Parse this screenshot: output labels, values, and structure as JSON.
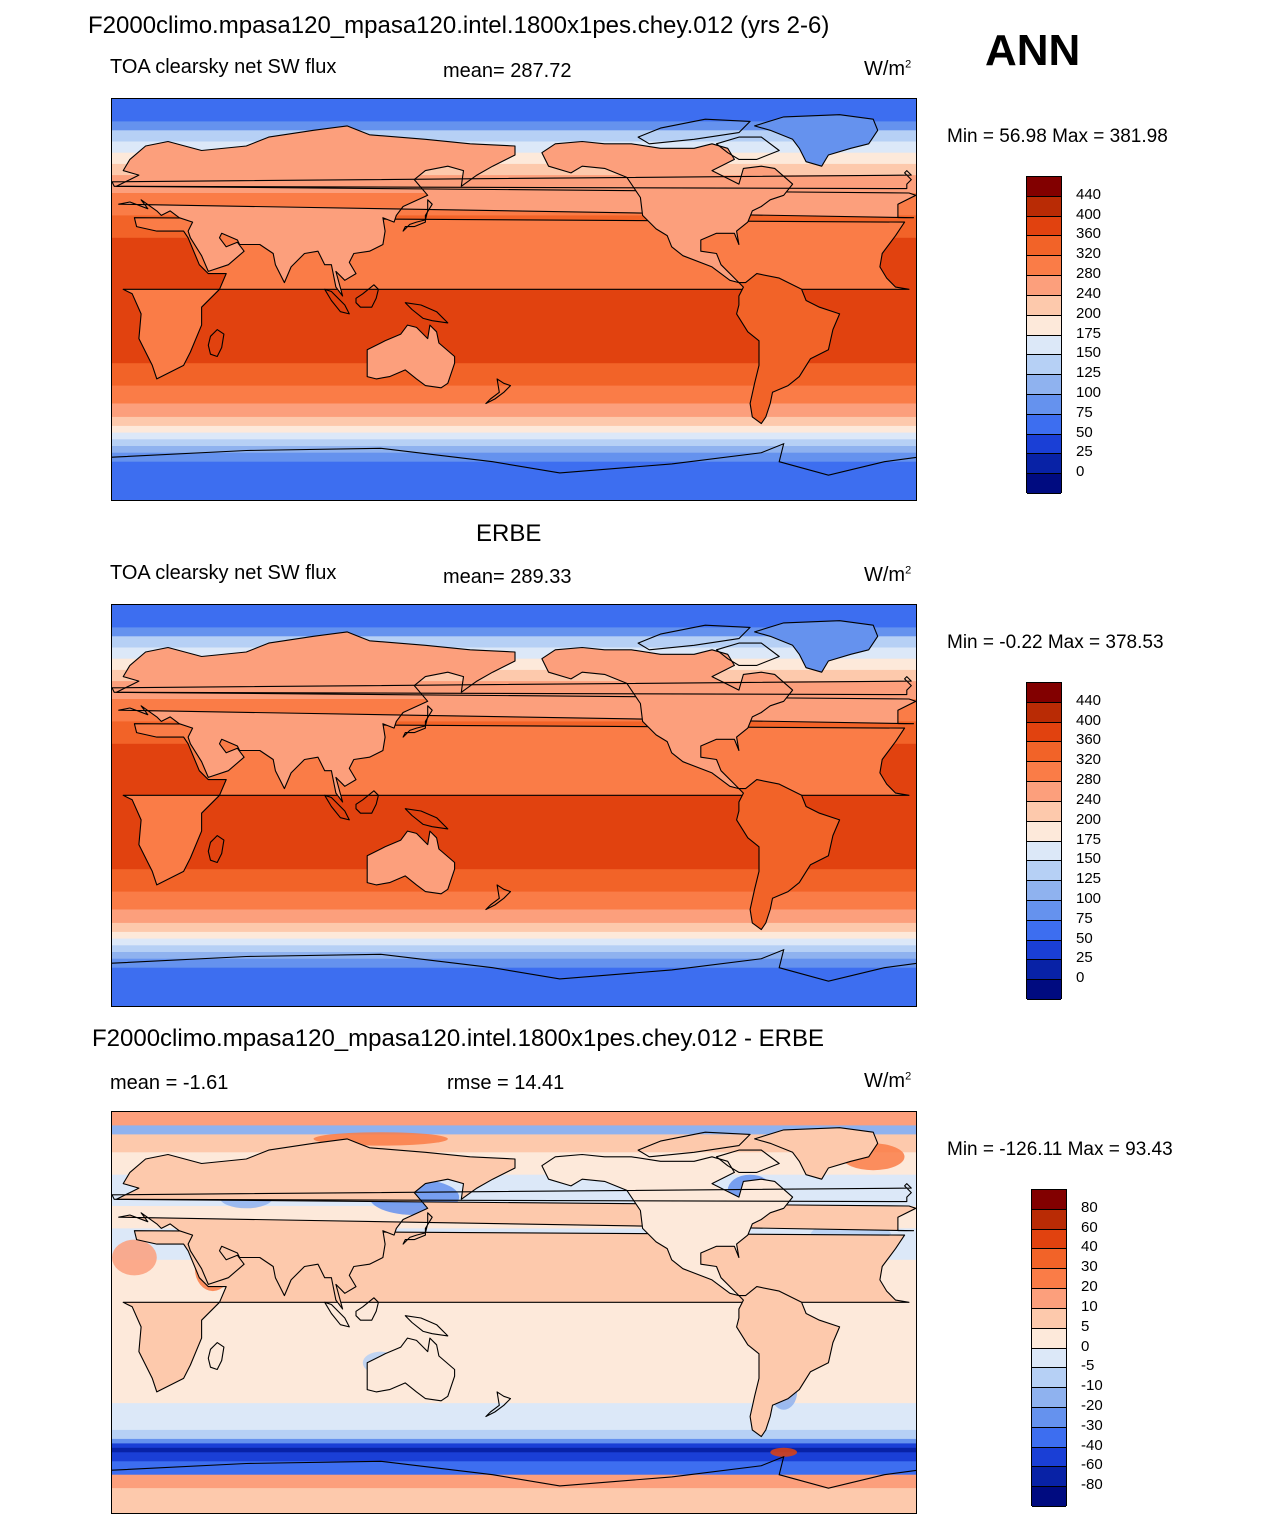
{
  "season": "ANN",
  "panels": [
    {
      "title": "F2000climo.mpasa120_mpasa120.intel.1800x1pes.chey.012 (yrs 2-6)",
      "left_label": "TOA clearsky net SW flux",
      "center_label": "mean= 287.72",
      "units": "W/m",
      "units_sup": "2",
      "minmax": "Min =  56.98 Max = 381.98",
      "palette": "absolute",
      "colorbar_labels": [
        "440",
        "400",
        "360",
        "320",
        "280",
        "240",
        "200",
        "175",
        "150",
        "125",
        "100",
        "75",
        "50",
        "25",
        "0"
      ],
      "colorbar_colors": [
        "#820000",
        "#b92b05",
        "#e1420f",
        "#f26328",
        "#fa7c47",
        "#fc9f7c",
        "#fdc9ac",
        "#fde9da",
        "#dce8f8",
        "#b6d0f5",
        "#8fb2ef",
        "#6592ee",
        "#3d6ef0",
        "#1a3fd6",
        "#0822a6",
        "#000b80"
      ]
    },
    {
      "title": "ERBE",
      "left_label": "TOA clearsky net SW flux",
      "center_label": "mean= 289.33",
      "units": "W/m",
      "units_sup": "2",
      "minmax": "Min =  -0.22 Max = 378.53",
      "palette": "absolute",
      "colorbar_labels": [
        "440",
        "400",
        "360",
        "320",
        "280",
        "240",
        "200",
        "175",
        "150",
        "125",
        "100",
        "75",
        "50",
        "25",
        "0"
      ],
      "colorbar_colors": [
        "#820000",
        "#b92b05",
        "#e1420f",
        "#f26328",
        "#fa7c47",
        "#fc9f7c",
        "#fdc9ac",
        "#fde9da",
        "#dce8f8",
        "#b6d0f5",
        "#8fb2ef",
        "#6592ee",
        "#3d6ef0",
        "#1a3fd6",
        "#0822a6",
        "#000b80"
      ]
    },
    {
      "title": "F2000climo.mpasa120_mpasa120.intel.1800x1pes.chey.012 - ERBE",
      "left_label": "mean =  -1.61",
      "center_label": "rmse =  14.41",
      "units": "W/m",
      "units_sup": "2",
      "minmax": "Min = -126.11 Max =  93.43",
      "palette": "difference",
      "colorbar_labels": [
        "80",
        "60",
        "40",
        "30",
        "20",
        "10",
        "5",
        "0",
        "-5",
        "-10",
        "-20",
        "-30",
        "-40",
        "-60",
        "-80"
      ],
      "colorbar_colors": [
        "#820000",
        "#b92b05",
        "#e1420f",
        "#f26328",
        "#fa7c47",
        "#fc9f7c",
        "#fdc9ac",
        "#fde9da",
        "#dce8f8",
        "#b6d0f5",
        "#8fb2ef",
        "#6592ee",
        "#3d6ef0",
        "#1a3fd6",
        "#0822a6",
        "#000b80"
      ]
    }
  ]
}
